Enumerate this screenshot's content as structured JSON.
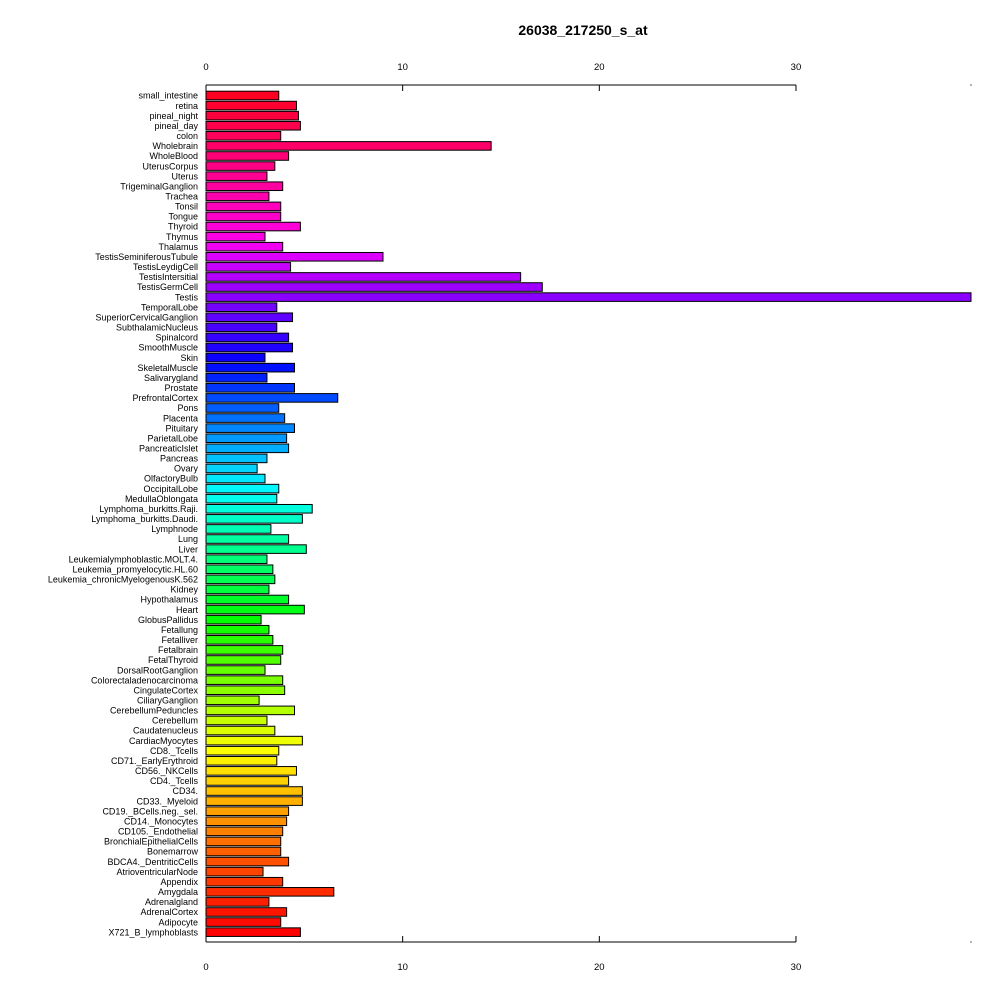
{
  "chart_data": {
    "type": "bar",
    "orientation": "horizontal",
    "title": "26038_217250_s_at",
    "xlabel": "",
    "ylabel": "",
    "xlim": [
      0,
      38.9
    ],
    "x_ticks": [
      0,
      10,
      20,
      30
    ],
    "x_axis_position": "top and bottom",
    "grid": false,
    "legend": "none",
    "categories": [
      "small_intestine",
      "retina",
      "pineal_night",
      "pineal_day",
      "colon",
      "Wholebrain",
      "WholeBlood",
      "UterusCorpus",
      "Uterus",
      "TrigeminalGanglion",
      "Trachea",
      "Tonsil",
      "Tongue",
      "Thyroid",
      "Thymus",
      "Thalamus",
      "TestisSeminiferousTubule",
      "TestisLeydigCell",
      "TestisIntersitial",
      "TestisGermCell",
      "Testis",
      "TemporalLobe",
      "SuperiorCervicalGanglion",
      "SubthalamicNucleus",
      "Spinalcord",
      "SmoothMuscle",
      "Skin",
      "SkeletalMuscle",
      "Salivarygland",
      "Prostate",
      "PrefrontalCortex",
      "Pons",
      "Placenta",
      "Pituitary",
      "ParietalLobe",
      "PancreaticIslet",
      "Pancreas",
      "Ovary",
      "OlfactoryBulb",
      "OccipitalLobe",
      "MedullaOblongata",
      "Lymphoma_burkitts.Raji.",
      "Lymphoma_burkitts.Daudi.",
      "Lymphnode",
      "Lung",
      "Liver",
      "Leukemialymphoblastic.MOLT.4.",
      "Leukemia_promyelocytic.HL.60",
      "Leukemia_chronicMyelogenousK.562",
      "Kidney",
      "Hypothalamus",
      "Heart",
      "GlobusPallidus",
      "Fetallung",
      "Fetalliver",
      "Fetalbrain",
      "FetalThyroid",
      "DorsalRootGanglion",
      "Colorectaladenocarcinoma",
      "CingulateCortex",
      "CiliaryGanglion",
      "CerebellumPeduncles",
      "Cerebellum",
      "Caudatenucleus",
      "CardiacMyocytes",
      "CD8._Tcells",
      "CD71._EarlyErythroid",
      "CD56._NKCells",
      "CD4._Tcells",
      "CD34.",
      "CD33._Myeloid",
      "CD19._BCells.neg._sel.",
      "CD14._Monocytes",
      "CD105._Endothelial",
      "BronchialEpithelialCells",
      "Bonemarrow",
      "BDCA4._DentriticCells",
      "AtrioventricularNode",
      "Appendix",
      "Amygdala",
      "Adrenalgland",
      "AdrenalCortex",
      "Adipocyte",
      "X721_B_lymphoblasts"
    ],
    "values": [
      3.7,
      4.6,
      4.7,
      4.8,
      3.8,
      14.5,
      4.2,
      3.5,
      3.1,
      3.9,
      3.2,
      3.8,
      3.8,
      4.8,
      3.0,
      3.9,
      9.0,
      4.3,
      16.0,
      17.1,
      38.9,
      3.6,
      4.4,
      3.6,
      4.2,
      4.4,
      3.0,
      4.5,
      3.1,
      4.5,
      6.7,
      3.7,
      4.0,
      4.5,
      4.1,
      4.2,
      3.1,
      2.6,
      3.0,
      3.7,
      3.6,
      5.4,
      4.9,
      3.3,
      4.2,
      5.1,
      3.1,
      3.4,
      3.5,
      3.2,
      4.2,
      5.0,
      2.8,
      3.2,
      3.4,
      3.9,
      3.8,
      3.0,
      3.9,
      4.0,
      2.7,
      4.5,
      3.1,
      3.5,
      4.9,
      3.7,
      3.6,
      4.6,
      4.2,
      4.9,
      4.9,
      4.2,
      4.1,
      3.9,
      3.8,
      3.8,
      4.2,
      2.9,
      3.9,
      6.5,
      3.2,
      4.1,
      3.8,
      4.8
    ],
    "colors": [
      "#ff0022",
      "#ff0030",
      "#ff003e",
      "#ff004c",
      "#ff005a",
      "#ff0068",
      "#ff0076",
      "#ff0084",
      "#ff0092",
      "#ff00a0",
      "#ff00ae",
      "#ff00bc",
      "#ff00ca",
      "#ff00d8",
      "#ff00e6",
      "#f200f2",
      "#dc00ff",
      "#c800ff",
      "#b400ff",
      "#9e00ff",
      "#8a00ff",
      "#7400ff",
      "#6000ff",
      "#4a00ff",
      "#3600ff",
      "#2000ff",
      "#0c00ff",
      "#0010ff",
      "#0022ff",
      "#0036ff",
      "#004aff",
      "#005eff",
      "#0072ff",
      "#0086ff",
      "#009aff",
      "#00aeff",
      "#00c2ff",
      "#00d4ff",
      "#00e8ff",
      "#00f8ff",
      "#00fff0",
      "#00ffdc",
      "#00ffc8",
      "#00ffb4",
      "#00ffa0",
      "#00ff8c",
      "#00ff78",
      "#00ff64",
      "#00ff50",
      "#00ff3c",
      "#00ff28",
      "#00ff14",
      "#00ff00",
      "#14ff00",
      "#28ff00",
      "#3cff00",
      "#50ff00",
      "#64ff00",
      "#78ff00",
      "#8cff00",
      "#a0ff00",
      "#b4ff00",
      "#c8ff00",
      "#dcff00",
      "#f0ff00",
      "#ffff00",
      "#fff000",
      "#ffe000",
      "#ffd000",
      "#ffc000",
      "#ffb000",
      "#ffa000",
      "#ff9000",
      "#ff8000",
      "#ff7000",
      "#ff6000",
      "#ff5000",
      "#ff4400",
      "#ff3800",
      "#ff2c00",
      "#ff2000",
      "#ff1400",
      "#ff0a00",
      "#ff0000"
    ]
  }
}
